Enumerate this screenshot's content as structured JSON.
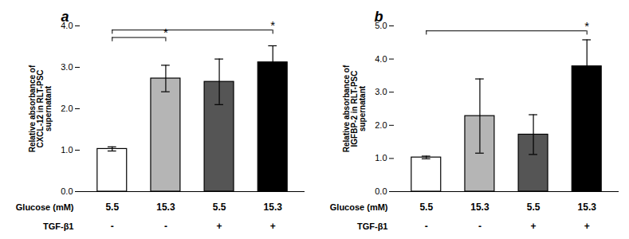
{
  "chart_data": [
    {
      "type": "bar",
      "title": "a",
      "ylabel": "Relative absorbance of\nCXCL-12 in RLT-PSC\nsupernatant",
      "values": [
        1.03,
        2.73,
        2.65,
        3.12
      ],
      "errors": [
        0.05,
        0.32,
        0.55,
        0.4
      ],
      "colors": [
        "#ffffff",
        "#b5b5b5",
        "#555555",
        "#000000"
      ],
      "ylim": [
        0,
        4
      ],
      "yticks": [
        0,
        1,
        2,
        3,
        4
      ],
      "table": [
        {
          "label": "Glucose (mM)",
          "values": [
            "5.5",
            "15.3",
            "5.5",
            "15.3"
          ]
        },
        {
          "label": "TGF-β1",
          "values": [
            "-",
            "-",
            "+",
            "+"
          ]
        }
      ],
      "annotations": [
        {
          "text": "*",
          "x1": 0,
          "x2": 1,
          "y": 3.72,
          "x": 1
        },
        {
          "text": "*",
          "x1": 0,
          "x2": 3,
          "y": 3.9,
          "x": 3
        }
      ]
    },
    {
      "type": "bar",
      "title": "b",
      "ylabel": "Relative absorbance of\nIGFBP-2 in RLT-PSC\nsupernatant",
      "values": [
        1.03,
        2.28,
        1.72,
        3.78
      ],
      "errors": [
        0.04,
        1.12,
        0.6,
        0.8
      ],
      "colors": [
        "#ffffff",
        "#b5b5b5",
        "#555555",
        "#000000"
      ],
      "ylim": [
        0,
        5
      ],
      "yticks": [
        0,
        1,
        2,
        3,
        4,
        5
      ],
      "table": [
        {
          "label": "Glucose (mM)",
          "values": [
            "5.5",
            "15.3",
            "5.5",
            "15.3"
          ]
        },
        {
          "label": "TGF-β1",
          "values": [
            "-",
            "-",
            "+",
            "+"
          ]
        }
      ],
      "annotations": [
        {
          "text": "*",
          "x1": 0,
          "x2": 3,
          "y": 4.85,
          "x": 3
        }
      ]
    }
  ]
}
